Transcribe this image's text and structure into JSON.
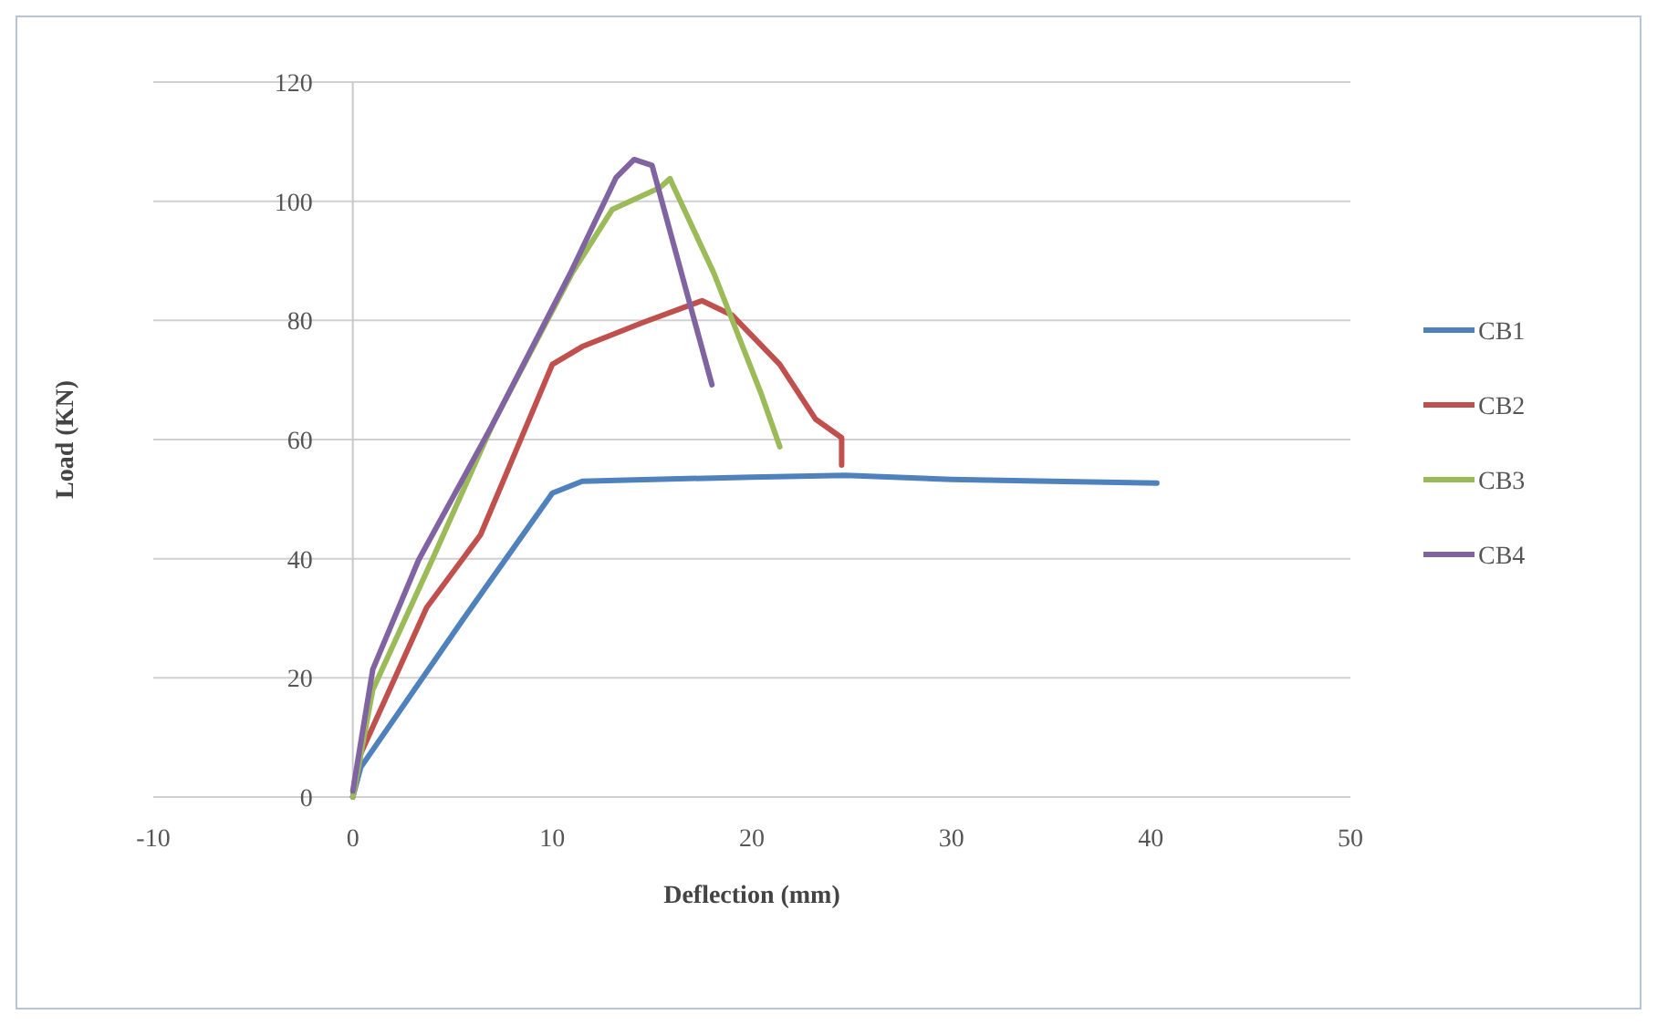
{
  "chart_data": {
    "type": "line",
    "xlabel": "Deflection (mm)",
    "ylabel": "Load (KN)",
    "xlim": [
      -10,
      50
    ],
    "xticks": [
      -10,
      0,
      10,
      20,
      30,
      40,
      50
    ],
    "ylim": [
      0,
      120
    ],
    "yticks": [
      0,
      20,
      40,
      60,
      80,
      100,
      120
    ],
    "grid": "y",
    "legend": "right",
    "marker": "none",
    "line_style": "solid",
    "series": [
      {
        "name": "CB1",
        "color": "#4f81bd",
        "x": [
          0,
          0.4,
          5.5,
          10,
          11.5,
          15,
          20,
          24.7,
          30,
          35,
          40.3
        ],
        "values": [
          0,
          5,
          29.7,
          51,
          53,
          53.3,
          53.7,
          54,
          53.3,
          53,
          52.7
        ]
      },
      {
        "name": "CB2",
        "color": "#c0504d",
        "x": [
          0,
          0.4,
          3.7,
          6.4,
          10,
          11.5,
          14.5,
          17.5,
          19,
          21.4,
          23.2,
          24.5,
          24.5
        ],
        "values": [
          0,
          7.3,
          31.8,
          44,
          72.6,
          75.6,
          79.6,
          83.3,
          80.9,
          72.6,
          63.4,
          60.3,
          55.7
        ]
      },
      {
        "name": "CB3",
        "color": "#9bbb59",
        "x": [
          0,
          1,
          4,
          7,
          11,
          13,
          15.4,
          15.9,
          16,
          18.1,
          20.5,
          21.4
        ],
        "values": [
          0,
          18,
          40,
          62.5,
          88,
          98.6,
          102.3,
          103.8,
          103,
          87.9,
          67.4,
          58.8
        ]
      },
      {
        "name": "CB4",
        "color": "#8064a2",
        "x": [
          0,
          1,
          3.3,
          7,
          10.9,
          13.2,
          14.1,
          15,
          18
        ],
        "values": [
          1,
          21.4,
          39.8,
          62.5,
          87.9,
          104,
          107,
          106,
          69.2
        ]
      }
    ]
  }
}
